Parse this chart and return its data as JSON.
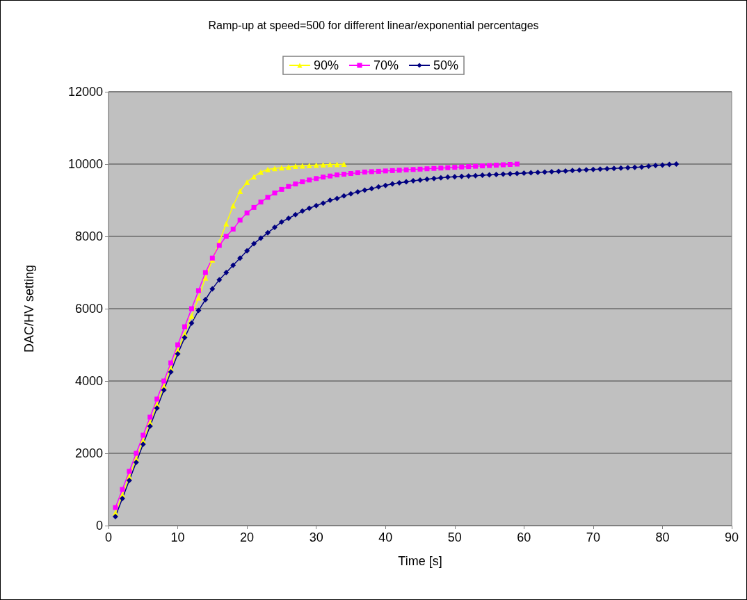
{
  "chart_data": {
    "type": "line",
    "title": "Ramp-up at speed=500 for different linear/exponential percentages",
    "xlabel": "Time [s]",
    "ylabel": "DAC/HV setting",
    "xlim": [
      0,
      90
    ],
    "xticks": [
      0,
      10,
      20,
      30,
      40,
      50,
      60,
      70,
      80,
      90
    ],
    "ylim": [
      0,
      12000
    ],
    "yticks": [
      0,
      2000,
      4000,
      6000,
      8000,
      10000,
      12000
    ],
    "grid": "y",
    "legend": "top",
    "line_style": "solid",
    "series": [
      {
        "name": "90%",
        "color": "#ffff00",
        "marker": "triangle",
        "x": [
          1,
          2,
          3,
          4,
          5,
          6,
          7,
          8,
          9,
          10,
          11,
          12,
          13,
          14,
          15,
          16,
          17,
          18,
          19,
          20,
          21,
          22,
          23,
          24,
          25,
          26,
          27,
          28,
          29,
          30,
          31,
          32,
          33,
          34
        ],
        "values": [
          350,
          850,
          1350,
          1850,
          2350,
          2850,
          3350,
          3850,
          4350,
          4850,
          5300,
          5800,
          6300,
          6850,
          7350,
          7850,
          8350,
          8850,
          9250,
          9500,
          9650,
          9780,
          9850,
          9880,
          9900,
          9920,
          9940,
          9950,
          9960,
          9970,
          9980,
          9990,
          9990,
          10000
        ]
      },
      {
        "name": "70%",
        "color": "#ff00ff",
        "marker": "square",
        "x": [
          1,
          2,
          3,
          4,
          5,
          6,
          7,
          8,
          9,
          10,
          11,
          12,
          13,
          14,
          15,
          16,
          17,
          18,
          19,
          20,
          21,
          22,
          23,
          24,
          25,
          26,
          27,
          28,
          29,
          30,
          31,
          32,
          33,
          34,
          35,
          36,
          37,
          38,
          39,
          40,
          41,
          42,
          43,
          44,
          45,
          46,
          47,
          48,
          49,
          50,
          51,
          52,
          53,
          54,
          55,
          56,
          57,
          58,
          59
        ],
        "values": [
          500,
          1000,
          1500,
          2000,
          2500,
          3000,
          3500,
          4000,
          4500,
          5000,
          5500,
          6000,
          6500,
          7000,
          7400,
          7750,
          8000,
          8200,
          8450,
          8650,
          8800,
          8950,
          9080,
          9200,
          9300,
          9380,
          9450,
          9510,
          9560,
          9600,
          9640,
          9670,
          9700,
          9720,
          9740,
          9760,
          9780,
          9790,
          9800,
          9810,
          9820,
          9830,
          9840,
          9850,
          9860,
          9870,
          9880,
          9890,
          9900,
          9910,
          9920,
          9930,
          9940,
          9950,
          9960,
          9970,
          9980,
          9990,
          10000
        ]
      },
      {
        "name": "50%",
        "color": "#000080",
        "marker": "diamond",
        "x": [
          1,
          2,
          3,
          4,
          5,
          6,
          7,
          8,
          9,
          10,
          11,
          12,
          13,
          14,
          15,
          16,
          17,
          18,
          19,
          20,
          21,
          22,
          23,
          24,
          25,
          26,
          27,
          28,
          29,
          30,
          31,
          32,
          33,
          34,
          35,
          36,
          37,
          38,
          39,
          40,
          41,
          42,
          43,
          44,
          45,
          46,
          47,
          48,
          49,
          50,
          51,
          52,
          53,
          54,
          55,
          56,
          57,
          58,
          59,
          60,
          61,
          62,
          63,
          64,
          65,
          66,
          67,
          68,
          69,
          70,
          71,
          72,
          73,
          74,
          75,
          76,
          77,
          78,
          79,
          80,
          81,
          82
        ],
        "values": [
          250,
          750,
          1250,
          1750,
          2250,
          2750,
          3250,
          3750,
          4250,
          4750,
          5200,
          5600,
          5950,
          6250,
          6550,
          6800,
          7000,
          7200,
          7400,
          7600,
          7800,
          7950,
          8100,
          8250,
          8400,
          8500,
          8600,
          8700,
          8780,
          8850,
          8920,
          9000,
          9050,
          9120,
          9180,
          9230,
          9280,
          9320,
          9370,
          9410,
          9450,
          9480,
          9510,
          9540,
          9560,
          9580,
          9600,
          9620,
          9640,
          9650,
          9660,
          9670,
          9680,
          9690,
          9700,
          9710,
          9720,
          9730,
          9740,
          9750,
          9760,
          9770,
          9780,
          9790,
          9800,
          9810,
          9820,
          9830,
          9840,
          9850,
          9860,
          9870,
          9880,
          9890,
          9900,
          9910,
          9920,
          9940,
          9960,
          9970,
          9990,
          10000
        ]
      }
    ]
  }
}
